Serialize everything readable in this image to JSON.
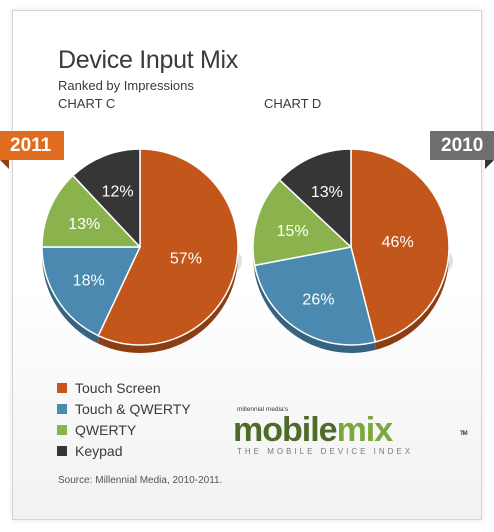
{
  "title": "Device Input Mix",
  "subtitle": "Ranked by Impressions",
  "colors": {
    "Touch Screen": "#c3561a",
    "Touch & QWERTY": "#4b89b1",
    "QWERTY": "#8ab34d",
    "Keypad": "#363636"
  },
  "chart_data": [
    {
      "type": "pie",
      "title": "CHART C",
      "year_tab": "2011",
      "labels": [
        "Touch Screen",
        "Touch & QWERTY",
        "QWERTY",
        "Keypad"
      ],
      "values": [
        57,
        18,
        13,
        12
      ],
      "data_labels": [
        "57%",
        "18%",
        "13%",
        "12%"
      ]
    },
    {
      "type": "pie",
      "title": "CHART D",
      "year_tab": "2010",
      "labels": [
        "Touch Screen",
        "Touch & QWERTY",
        "QWERTY",
        "Keypad"
      ],
      "values": [
        46,
        26,
        15,
        13
      ],
      "data_labels": [
        "46%",
        "26%",
        "15%",
        "13%"
      ]
    }
  ],
  "legend": [
    "Touch Screen",
    "Touch & QWERTY",
    "QWERTY",
    "Keypad"
  ],
  "brand": {
    "small_text": "millennial media's",
    "name_part1": "mobile",
    "name_part2": "mix",
    "trademark": "TM",
    "tagline": "THE MOBILE DEVICE INDEX"
  },
  "source": "Source: Millennial Media, 2010-2011."
}
